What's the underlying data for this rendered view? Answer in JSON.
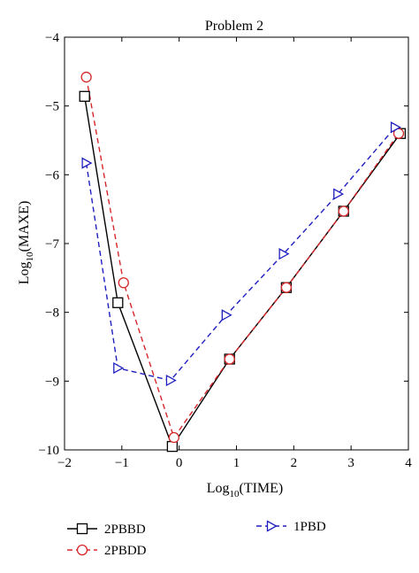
{
  "chart_data": {
    "type": "line",
    "title": "Problem 2",
    "xlabel": {
      "base": "Log",
      "sub": "10",
      "rest": "(TIME)"
    },
    "ylabel": {
      "base": "Log",
      "sub": "10",
      "rest": "(MAXE)"
    },
    "xlim": [
      -2,
      4
    ],
    "ylim": [
      -10,
      -4
    ],
    "xticks": [
      -2,
      -1,
      0,
      1,
      2,
      3,
      4
    ],
    "xtick_labels": [
      "−2",
      "−1",
      "0",
      "1",
      "2",
      "3",
      "4"
    ],
    "yticks": [
      -10,
      -9,
      -8,
      -7,
      -6,
      -5,
      -4
    ],
    "ytick_labels": [
      "−10",
      "−9",
      "−8",
      "−7",
      "−6",
      "−5",
      "−4"
    ],
    "grid": false,
    "legend_position": "below plot",
    "series": [
      {
        "name": "2PBBD",
        "color": "#000000",
        "line_style": "solid",
        "marker": "square",
        "points": [
          [
            -1.65,
            -4.86
          ],
          [
            -1.07,
            -7.86
          ],
          [
            -0.12,
            -9.95
          ],
          [
            0.88,
            -8.68
          ],
          [
            1.87,
            -7.64
          ],
          [
            2.87,
            -6.53
          ],
          [
            3.86,
            -5.4
          ]
        ]
      },
      {
        "name": "2PBDD",
        "color": "#d62728",
        "line_style": "dashed",
        "marker": "circle",
        "points": [
          [
            -1.62,
            -4.58
          ],
          [
            -0.97,
            -7.57
          ],
          [
            -0.09,
            -9.82
          ],
          [
            0.88,
            -8.68
          ],
          [
            1.87,
            -7.64
          ],
          [
            2.87,
            -6.53
          ],
          [
            3.83,
            -5.4
          ]
        ]
      },
      {
        "name": "1PBD",
        "color": "#1f1fbf",
        "line_style": "dashed",
        "marker": "triangle-right",
        "points": [
          [
            -1.62,
            -5.83
          ],
          [
            -1.07,
            -8.81
          ],
          [
            -0.15,
            -8.99
          ],
          [
            0.82,
            -8.04
          ],
          [
            1.82,
            -7.15
          ],
          [
            2.77,
            -6.28
          ],
          [
            3.77,
            -5.31
          ]
        ]
      }
    ]
  }
}
